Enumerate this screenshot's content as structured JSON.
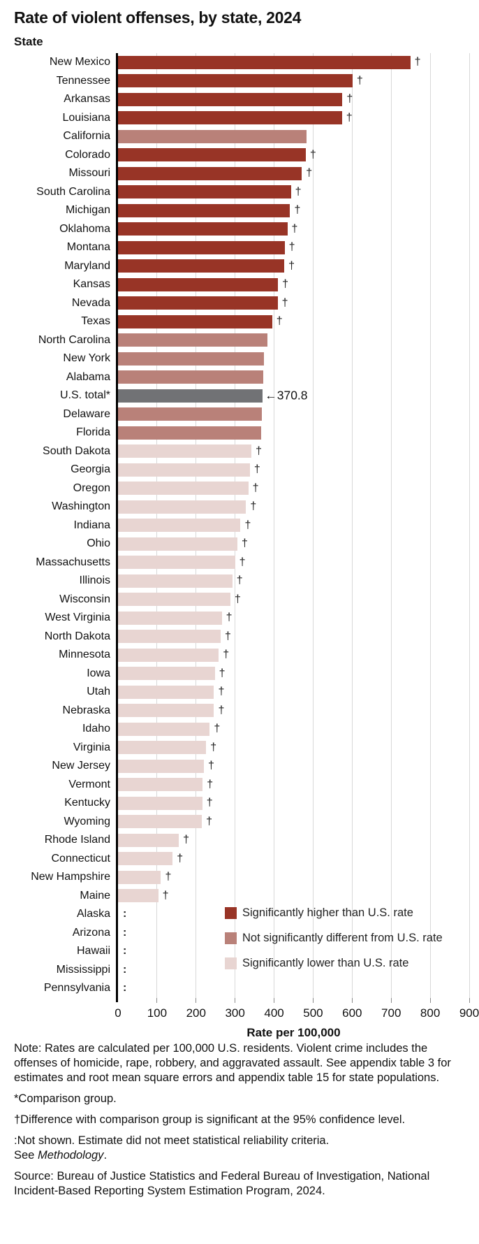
{
  "title": "Rate of violent offenses, by state, 2024",
  "y_axis_header": "State",
  "dagger_symbol": "†",
  "not_shown_symbol": ":",
  "colors": {
    "higher": "#983426",
    "not_different": "#b98179",
    "lower": "#e8d5d2",
    "total": "#717275",
    "gridline": "#d8d8d8",
    "axis_line": "#000000"
  },
  "legend": [
    {
      "key": "higher",
      "label": "Significantly higher than U.S. rate"
    },
    {
      "key": "not_different",
      "label": "Not significantly different from U.S. rate"
    },
    {
      "key": "lower",
      "label": "Significantly lower than U.S. rate"
    }
  ],
  "x_axis": {
    "label": "Rate per 100,000",
    "ticks": [
      0,
      100,
      200,
      300,
      400,
      500,
      600,
      700,
      800,
      900
    ],
    "min": 0,
    "max": 900
  },
  "chart_data": {
    "type": "bar",
    "orientation": "horizontal",
    "title": "Rate of violent offenses, by state, 2024",
    "xlabel": "Rate per 100,000",
    "ylabel": "State",
    "xlim": [
      0,
      900
    ],
    "grid": true,
    "legend_position": "inside-bottom-right",
    "rows": [
      {
        "state": "New Mexico",
        "value": 749,
        "category": "higher",
        "dagger": true
      },
      {
        "state": "Tennessee",
        "value": 601,
        "category": "higher",
        "dagger": true
      },
      {
        "state": "Arkansas",
        "value": 575,
        "category": "higher",
        "dagger": true
      },
      {
        "state": "Louisiana",
        "value": 574,
        "category": "higher",
        "dagger": true
      },
      {
        "state": "California",
        "value": 483,
        "category": "not_different",
        "dagger": false
      },
      {
        "state": "Colorado",
        "value": 481,
        "category": "higher",
        "dagger": true
      },
      {
        "state": "Missouri",
        "value": 471,
        "category": "higher",
        "dagger": true
      },
      {
        "state": "South Carolina",
        "value": 443,
        "category": "higher",
        "dagger": true
      },
      {
        "state": "Michigan",
        "value": 441,
        "category": "higher",
        "dagger": true
      },
      {
        "state": "Oklahoma",
        "value": 434,
        "category": "higher",
        "dagger": true
      },
      {
        "state": "Montana",
        "value": 427,
        "category": "higher",
        "dagger": true
      },
      {
        "state": "Maryland",
        "value": 426,
        "category": "higher",
        "dagger": true
      },
      {
        "state": "Kansas",
        "value": 410,
        "category": "higher",
        "dagger": true
      },
      {
        "state": "Nevada",
        "value": 409,
        "category": "higher",
        "dagger": true
      },
      {
        "state": "Texas",
        "value": 395,
        "category": "higher",
        "dagger": true
      },
      {
        "state": "North Carolina",
        "value": 383,
        "category": "not_different",
        "dagger": false
      },
      {
        "state": "New York",
        "value": 374,
        "category": "not_different",
        "dagger": false
      },
      {
        "state": "Alabama",
        "value": 373,
        "category": "not_different",
        "dagger": false
      },
      {
        "state": "U.S. total*",
        "value": 370.8,
        "category": "total",
        "dagger": false,
        "annotation": "←370.8"
      },
      {
        "state": "Delaware",
        "value": 368,
        "category": "not_different",
        "dagger": false
      },
      {
        "state": "Florida",
        "value": 366,
        "category": "not_different",
        "dagger": false
      },
      {
        "state": "South Dakota",
        "value": 342,
        "category": "lower",
        "dagger": true
      },
      {
        "state": "Georgia",
        "value": 338,
        "category": "lower",
        "dagger": true
      },
      {
        "state": "Oregon",
        "value": 334,
        "category": "lower",
        "dagger": true
      },
      {
        "state": "Washington",
        "value": 328,
        "category": "lower",
        "dagger": true
      },
      {
        "state": "Indiana",
        "value": 314,
        "category": "lower",
        "dagger": true
      },
      {
        "state": "Ohio",
        "value": 306,
        "category": "lower",
        "dagger": true
      },
      {
        "state": "Massachusetts",
        "value": 300,
        "category": "lower",
        "dagger": true
      },
      {
        "state": "Illinois",
        "value": 293,
        "category": "lower",
        "dagger": true
      },
      {
        "state": "Wisconsin",
        "value": 288,
        "category": "lower",
        "dagger": true
      },
      {
        "state": "West Virginia",
        "value": 266,
        "category": "lower",
        "dagger": true
      },
      {
        "state": "North Dakota",
        "value": 263,
        "category": "lower",
        "dagger": true
      },
      {
        "state": "Minnesota",
        "value": 258,
        "category": "lower",
        "dagger": true
      },
      {
        "state": "Iowa",
        "value": 248,
        "category": "lower",
        "dagger": true
      },
      {
        "state": "Utah",
        "value": 246,
        "category": "lower",
        "dagger": true
      },
      {
        "state": "Nebraska",
        "value": 246,
        "category": "lower",
        "dagger": true
      },
      {
        "state": "Idaho",
        "value": 235,
        "category": "lower",
        "dagger": true
      },
      {
        "state": "Virginia",
        "value": 226,
        "category": "lower",
        "dagger": true
      },
      {
        "state": "New Jersey",
        "value": 220,
        "category": "lower",
        "dagger": true
      },
      {
        "state": "Vermont",
        "value": 217,
        "category": "lower",
        "dagger": true
      },
      {
        "state": "Kentucky",
        "value": 216,
        "category": "lower",
        "dagger": true
      },
      {
        "state": "Wyoming",
        "value": 215,
        "category": "lower",
        "dagger": true
      },
      {
        "state": "Rhode Island",
        "value": 156,
        "category": "lower",
        "dagger": true
      },
      {
        "state": "Connecticut",
        "value": 140,
        "category": "lower",
        "dagger": true
      },
      {
        "state": "New Hampshire",
        "value": 110,
        "category": "lower",
        "dagger": true
      },
      {
        "state": "Maine",
        "value": 103,
        "category": "lower",
        "dagger": true
      },
      {
        "state": "Alaska",
        "value": null,
        "category": "not_shown",
        "dagger": false
      },
      {
        "state": "Arizona",
        "value": null,
        "category": "not_shown",
        "dagger": false
      },
      {
        "state": "Hawaii",
        "value": null,
        "category": "not_shown",
        "dagger": false
      },
      {
        "state": "Mississippi",
        "value": null,
        "category": "not_shown",
        "dagger": false
      },
      {
        "state": "Pennsylvania",
        "value": null,
        "category": "not_shown",
        "dagger": false
      }
    ]
  },
  "notes": {
    "general": "Note: Rates are calculated per 100,000 U.S. residents. Violent crime includes the offenses of homicide, rape, robbery, and aggravated assault. See appendix table 3 for estimates and root mean square errors and appendix table 15 for state populations.",
    "comparison": "*Comparison group.",
    "dagger_note": "†Difference with comparison group is significant at the 95% confidence level.",
    "not_shown_line1": ":Not shown. Estimate did not meet statistical reliability criteria.",
    "see": "See ",
    "methodology": "Methodology",
    "period": ".",
    "source": "Source: Bureau of Justice Statistics and Federal Bureau of Investigation, National Incident-Based Reporting System Estimation Program, 2024."
  }
}
